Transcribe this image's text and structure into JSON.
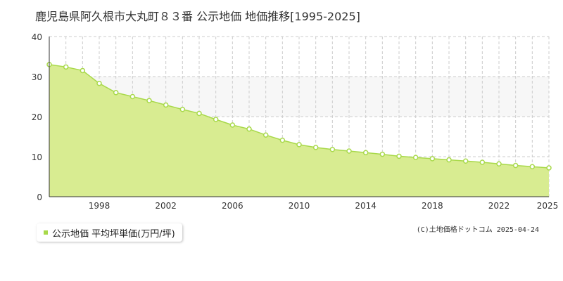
{
  "title": "鹿児島県阿久根市大丸町８３番 公示地価 地価推移[1995-2025]",
  "legend_label": "公示地価 平均坪単価(万円/坪)",
  "copyright": "(C)土地価格ドットコム 2025-04-24",
  "colors": {
    "fill": "#d8ec91",
    "line": "#a8d94a",
    "grid": "#cccccc",
    "band": "#f7f7f7"
  },
  "chart_data": {
    "type": "area",
    "title": "鹿児島県阿久根市大丸町８３番 公示地価 地価推移[1995-2025]",
    "series": [
      {
        "name": "公示地価 平均坪単価(万円/坪)",
        "x": [
          1995,
          1996,
          1997,
          1998,
          1999,
          2000,
          2001,
          2002,
          2003,
          2004,
          2005,
          2006,
          2007,
          2008,
          2009,
          2010,
          2011,
          2012,
          2013,
          2014,
          2015,
          2016,
          2017,
          2018,
          2019,
          2020,
          2021,
          2022,
          2023,
          2024,
          2025
        ],
        "values": [
          33,
          32.4,
          31.5,
          28.3,
          26,
          25,
          24,
          22.9,
          21.8,
          20.8,
          19.3,
          17.9,
          16.9,
          15.4,
          14.1,
          13,
          12.3,
          11.8,
          11.4,
          11,
          10.6,
          10.1,
          9.8,
          9.5,
          9.2,
          8.9,
          8.6,
          8.2,
          7.8,
          7.5,
          7.2
        ]
      }
    ],
    "xticks": [
      "1998",
      "2002",
      "2006",
      "2010",
      "2014",
      "2018",
      "2022",
      "2025"
    ],
    "xtick_values": [
      1998,
      2002,
      2006,
      2010,
      2014,
      2018,
      2022,
      2025
    ],
    "yticks": [
      0,
      10,
      20,
      30,
      40
    ],
    "xlim": [
      1995,
      2025
    ],
    "ylim": [
      0,
      40
    ],
    "grid": true,
    "legend_position": "bottom-left"
  }
}
